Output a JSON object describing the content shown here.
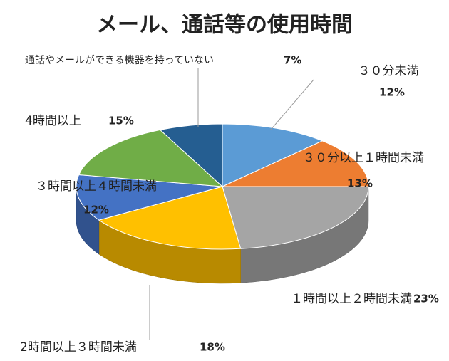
{
  "chart_data": {
    "type": "pie",
    "title": "メール、通話等の使用時間",
    "categories": [
      "３０分未満",
      "３０分以上１時間未満",
      "１時間以上２時間未満",
      "2時間以上３時間未満",
      "３時間以上４時間未満",
      "4時間以上",
      "通話やメールができる機器を持っていない"
    ],
    "values": [
      12,
      13,
      23,
      18,
      12,
      15,
      7
    ],
    "value_labels": [
      "12%",
      "13%",
      "23%",
      "18%",
      "12%",
      "15%",
      "7%"
    ],
    "colors": [
      "#5b9bd5",
      "#ed7d31",
      "#a5a5a5",
      "#ffc000",
      "#4472c4",
      "#70ad47",
      "#255e91"
    ]
  }
}
